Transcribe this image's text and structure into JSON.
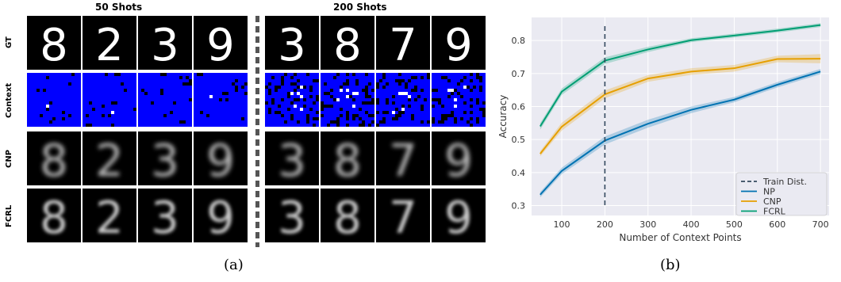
{
  "panel_a": {
    "caption": "(a)",
    "groups": [
      {
        "title": "50 Shots",
        "digits": [
          "8",
          "2",
          "3",
          "9"
        ]
      },
      {
        "title": "200 Shots",
        "digits": [
          "3",
          "8",
          "7",
          "9"
        ]
      }
    ],
    "rows": [
      "GT",
      "Context",
      "CNP",
      "FCRL"
    ]
  },
  "panel_b": {
    "caption": "(b)"
  },
  "chart_data": {
    "type": "line",
    "xlabel": "Number of Context Points",
    "ylabel": "Accuracy",
    "xlim": [
      30,
      720
    ],
    "ylim": [
      0.27,
      0.87
    ],
    "xticks": [
      100,
      200,
      300,
      400,
      500,
      600,
      700
    ],
    "yticks": [
      0.3,
      0.4,
      0.5,
      0.6,
      0.7,
      0.8
    ],
    "grid": true,
    "legend_placement": "bottom-right",
    "reference_line": {
      "name": "Train Dist.",
      "x": 200,
      "style": "dashed",
      "color": "#34495e"
    },
    "x": [
      50,
      100,
      200,
      300,
      400,
      500,
      600,
      700
    ],
    "series": [
      {
        "name": "NP",
        "color": "#0072b2",
        "values": [
          0.333,
          0.405,
          0.497,
          0.548,
          0.59,
          0.621,
          0.666,
          0.706
        ],
        "band": [
          0.008,
          0.01,
          0.012,
          0.012,
          0.01,
          0.008,
          0.008,
          0.008
        ]
      },
      {
        "name": "CNP",
        "color": "#e69f00",
        "values": [
          0.457,
          0.539,
          0.637,
          0.685,
          0.706,
          0.716,
          0.744,
          0.745
        ],
        "band": [
          0.008,
          0.012,
          0.012,
          0.01,
          0.01,
          0.01,
          0.01,
          0.014
        ]
      },
      {
        "name": "FCRL",
        "color": "#009e73",
        "values": [
          0.54,
          0.645,
          0.739,
          0.773,
          0.801,
          0.815,
          0.83,
          0.847
        ],
        "band": [
          0.01,
          0.01,
          0.01,
          0.008,
          0.006,
          0.006,
          0.006,
          0.006
        ]
      }
    ]
  }
}
